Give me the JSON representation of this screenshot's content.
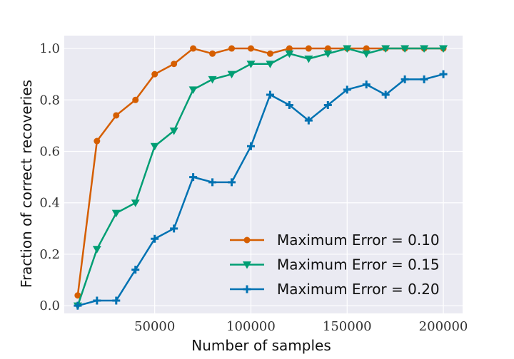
{
  "chart_data": {
    "type": "line",
    "xlabel": "Number of samples",
    "ylabel": "Fraction of correct recoveries",
    "xlim": [
      3000,
      210000
    ],
    "ylim": [
      -0.03,
      1.05
    ],
    "x_ticks": [
      50000,
      100000,
      150000,
      200000
    ],
    "x_tick_labels": [
      "50000",
      "100000",
      "150000",
      "200000"
    ],
    "y_ticks": [
      0.0,
      0.2,
      0.4,
      0.6,
      0.8,
      1.0
    ],
    "y_tick_labels": [
      "0.0",
      "0.2",
      "0.4",
      "0.6",
      "0.8",
      "1.0"
    ],
    "grid": true,
    "legend_position": "bottom-right",
    "x": [
      10000,
      20000,
      30000,
      40000,
      50000,
      60000,
      70000,
      80000,
      90000,
      100000,
      110000,
      120000,
      130000,
      140000,
      150000,
      160000,
      170000,
      180000,
      190000,
      200000
    ],
    "series": [
      {
        "name": "Maximum Error = 0.10",
        "color": "#d55e00",
        "marker": "circle",
        "values": [
          0.04,
          0.64,
          0.74,
          0.8,
          0.9,
          0.94,
          1.0,
          0.98,
          1.0,
          1.0,
          0.98,
          1.0,
          1.0,
          1.0,
          1.0,
          1.0,
          1.0,
          1.0,
          1.0,
          1.0
        ]
      },
      {
        "name": "Maximum Error = 0.15",
        "color": "#009e73",
        "marker": "triangle-down",
        "values": [
          0.0,
          0.22,
          0.36,
          0.4,
          0.62,
          0.68,
          0.84,
          0.88,
          0.9,
          0.94,
          0.94,
          0.98,
          0.96,
          0.98,
          1.0,
          0.98,
          1.0,
          1.0,
          1.0,
          1.0
        ]
      },
      {
        "name": "Maximum Error = 0.20",
        "color": "#0072b2",
        "marker": "plus",
        "values": [
          0.0,
          0.02,
          0.02,
          0.14,
          0.26,
          0.3,
          0.5,
          0.48,
          0.48,
          0.62,
          0.82,
          0.78,
          0.72,
          0.78,
          0.84,
          0.86,
          0.82,
          0.88,
          0.88,
          0.9
        ]
      }
    ]
  }
}
